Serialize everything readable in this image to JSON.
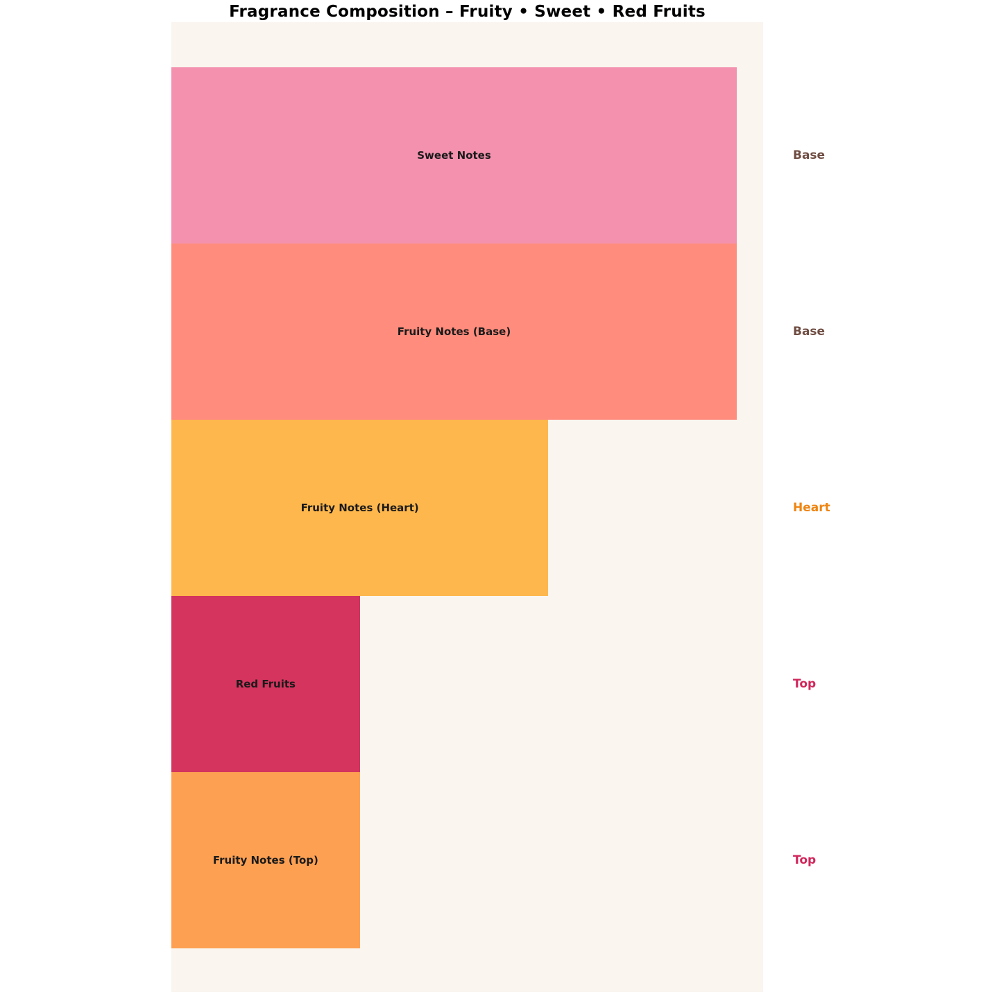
{
  "title": "Fragrance Composition – Fruity • Sweet • Red Fruits",
  "colors": {
    "page_background": "#FFFFFF",
    "plot_background": "#FAF5EF",
    "bar_label_text": "#1A1A1A",
    "phase_base": "#6E4C41",
    "phase_heart": "#EE8512",
    "phase_top": "#D1265B"
  },
  "chart_data": {
    "type": "bar",
    "orientation": "horizontal",
    "title": "Fragrance Composition – Fruity • Sweet • Red Fruits",
    "categories": [
      "Sweet Notes",
      "Fruity Notes (Base)",
      "Fruity Notes (Heart)",
      "Red Fruits",
      "Fruity Notes (Top)"
    ],
    "values": [
      30,
      30,
      20,
      10,
      10
    ],
    "bar_colors": [
      "#F491AF",
      "#FF8C7D",
      "#FDB74D",
      "#D4345E",
      "#FDA052"
    ],
    "phase_labels": [
      {
        "text": "Base",
        "color": "#6E4C41"
      },
      {
        "text": "Base",
        "color": "#6E4C41"
      },
      {
        "text": "Heart",
        "color": "#EE8512"
      },
      {
        "text": "Top",
        "color": "#D1265B"
      },
      {
        "text": "Top",
        "color": "#D1265B"
      }
    ],
    "xlim": [
      0,
      31.4
    ],
    "ylabel": "",
    "xlabel": "",
    "grid": false,
    "legend": false
  }
}
